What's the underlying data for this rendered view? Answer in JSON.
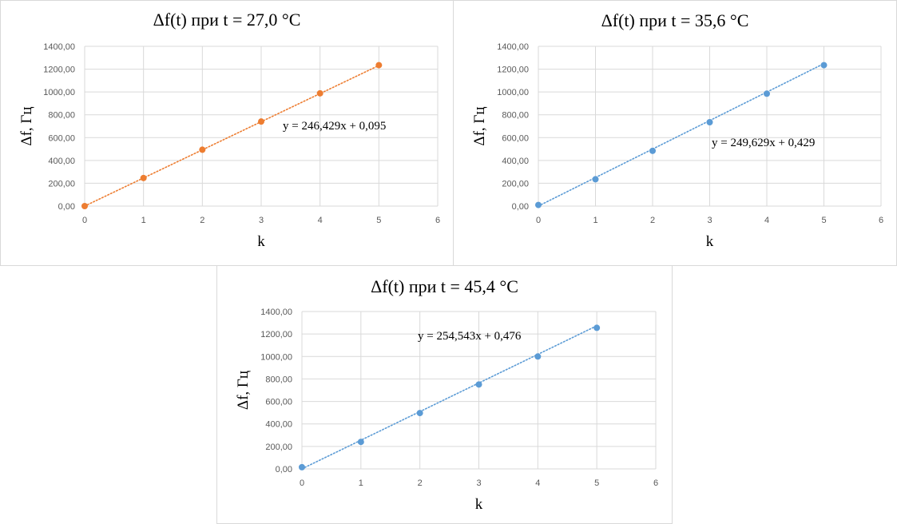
{
  "chart_data": [
    {
      "type": "scatter",
      "title": "Δf(t) при t = 27,0 °C",
      "xlabel": "k",
      "ylabel": "Δf, Гц",
      "xlim": [
        0,
        6
      ],
      "ylim": [
        0,
        1400
      ],
      "x_ticks": [
        "0",
        "1",
        "2",
        "3",
        "4",
        "5",
        "6"
      ],
      "y_ticks": [
        "0,00",
        "200,00",
        "400,00",
        "600,00",
        "800,00",
        "1000,00",
        "1200,00",
        "1400,00"
      ],
      "grid": true,
      "color": "#ED7D31",
      "series": [
        {
          "x": [
            0,
            1,
            2,
            3,
            4,
            5
          ],
          "y": [
            0,
            246,
            494,
            741,
            988,
            1235
          ]
        }
      ],
      "trendline": {
        "type": "linear",
        "slope": 246.429,
        "intercept": 0.095,
        "style": "dotted"
      },
      "equation": "y = 246,429x + 0,095"
    },
    {
      "type": "scatter",
      "title": "Δf(t) при t = 35,6 °C",
      "xlabel": "k",
      "ylabel": "Δf, Гц",
      "xlim": [
        0,
        6
      ],
      "ylim": [
        0,
        1400
      ],
      "x_ticks": [
        "0",
        "1",
        "2",
        "3",
        "4",
        "5",
        "6"
      ],
      "y_ticks": [
        "0,00",
        "200,00",
        "400,00",
        "600,00",
        "800,00",
        "1000,00",
        "1200,00",
        "1400,00"
      ],
      "grid": true,
      "color": "#5B9BD5",
      "series": [
        {
          "x": [
            0,
            1,
            2,
            3,
            4,
            5
          ],
          "y": [
            10,
            235,
            484,
            735,
            985,
            1235
          ]
        }
      ],
      "trendline": {
        "type": "linear",
        "slope": 249.629,
        "intercept": 0.429,
        "style": "dotted"
      },
      "equation": "y = 249,629x + 0,429"
    },
    {
      "type": "scatter",
      "title": "Δf(t) при t = 45,4 °C",
      "xlabel": "k",
      "ylabel": "Δf, Гц",
      "xlim": [
        0,
        6
      ],
      "ylim": [
        0,
        1400
      ],
      "x_ticks": [
        "0",
        "1",
        "2",
        "3",
        "4",
        "5",
        "6"
      ],
      "y_ticks": [
        "0,00",
        "200,00",
        "400,00",
        "600,00",
        "800,00",
        "1000,00",
        "1200,00",
        "1400,00"
      ],
      "grid": true,
      "color": "#5B9BD5",
      "series": [
        {
          "x": [
            0,
            1,
            2,
            3,
            4,
            5
          ],
          "y": [
            15,
            240,
            497,
            751,
            1000,
            1255
          ]
        }
      ],
      "trendline": {
        "type": "linear",
        "slope": 254.543,
        "intercept": 0.476,
        "style": "dotted"
      },
      "equation": "y = 254,543x + 0,476"
    }
  ]
}
